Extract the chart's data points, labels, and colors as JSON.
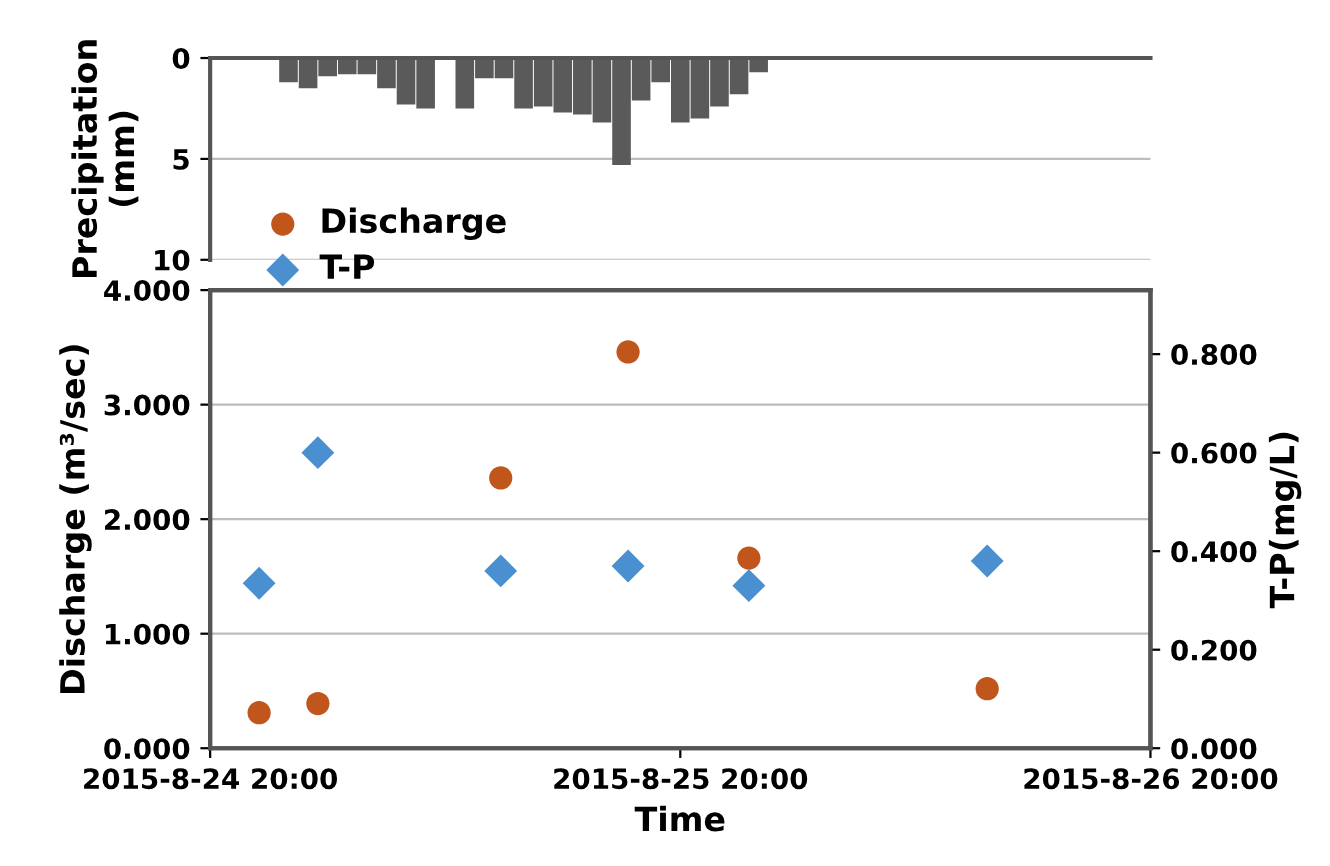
{
  "chart_data": [
    {
      "type": "bar",
      "ylabel": "Precipitation\n(mm)",
      "color": "#5a5a5a",
      "x": [
        "2015-08-25T00:00",
        "2015-08-25T01:00",
        "2015-08-25T02:00",
        "2015-08-25T03:00",
        "2015-08-25T04:00",
        "2015-08-25T05:00",
        "2015-08-25T06:00",
        "2015-08-25T07:00",
        "2015-08-25T08:00",
        "2015-08-25T09:00",
        "2015-08-25T10:00",
        "2015-08-25T11:00",
        "2015-08-25T12:00",
        "2015-08-25T13:00",
        "2015-08-25T14:00",
        "2015-08-25T15:00",
        "2015-08-25T16:00",
        "2015-08-25T17:00",
        "2015-08-25T18:00",
        "2015-08-25T19:00",
        "2015-08-25T20:00",
        "2015-08-25T21:00",
        "2015-08-25T22:00",
        "2015-08-25T23:00",
        "2015-08-26T00:00"
      ],
      "values": [
        1.2,
        1.5,
        0.9,
        0.8,
        0.8,
        1.5,
        2.3,
        2.5,
        0,
        2.5,
        1.0,
        1.0,
        2.5,
        2.4,
        2.7,
        2.8,
        3.2,
        5.3,
        2.1,
        1.2,
        3.2,
        3.0,
        2.4,
        1.8,
        0.7
      ],
      "xlim": [
        "2015-08-24T20:00",
        "2015-08-26T20:00"
      ],
      "ylim": [
        10,
        0
      ],
      "yticks": [
        0,
        5,
        10
      ],
      "tick_labels": "y",
      "grid": "y"
    },
    {
      "type": "scatter",
      "xlabel": "Time",
      "ylabel": "Discharge (m³/sec)",
      "y2label": "T-P(mg/L)",
      "x": [
        "2015-08-24T22:30",
        "2015-08-25T01:30",
        "2015-08-25T10:50",
        "2015-08-25T17:20",
        "2015-08-25T23:30",
        "2015-08-26T11:40"
      ],
      "series": [
        {
          "name": "Discharge",
          "color": "#c0561c",
          "marker": "circle",
          "values": [
            0.31,
            0.39,
            2.36,
            3.46,
            1.66,
            0.52
          ]
        },
        {
          "name": "T-P",
          "color": "#4a8fd0",
          "marker": "diamond",
          "axis": "y2",
          "values": [
            0.335,
            0.6,
            0.36,
            0.37,
            0.33,
            0.38
          ]
        }
      ],
      "xlim": [
        "2015-08-24T20:00",
        "2015-08-26T20:00"
      ],
      "xticks": [
        {
          "value": "2015-08-24T20:00",
          "label": "2015-8-24 20:00"
        },
        {
          "value": "2015-08-25T20:00",
          "label": "2015-8-25 20:00"
        },
        {
          "value": "2015-08-26T20:00",
          "label": "2015-8-26 20:00"
        }
      ],
      "ylim": [
        0,
        4
      ],
      "yticks": [
        {
          "value": 0,
          "label": "0.000"
        },
        {
          "value": 1,
          "label": "1.000"
        },
        {
          "value": 2,
          "label": "2.000"
        },
        {
          "value": 3,
          "label": "3.000"
        },
        {
          "value": 4,
          "label": "4.000"
        }
      ],
      "y2lim": [
        0,
        0.93
      ],
      "y2ticks": [
        {
          "value": 0,
          "label": "0.000"
        },
        {
          "value": 0.2,
          "label": "0.200"
        },
        {
          "value": 0.4,
          "label": "0.400"
        },
        {
          "value": 0.6,
          "label": "0.600"
        },
        {
          "value": 0.8,
          "label": "0.800"
        }
      ],
      "grid": "y",
      "legend": "top left"
    }
  ]
}
